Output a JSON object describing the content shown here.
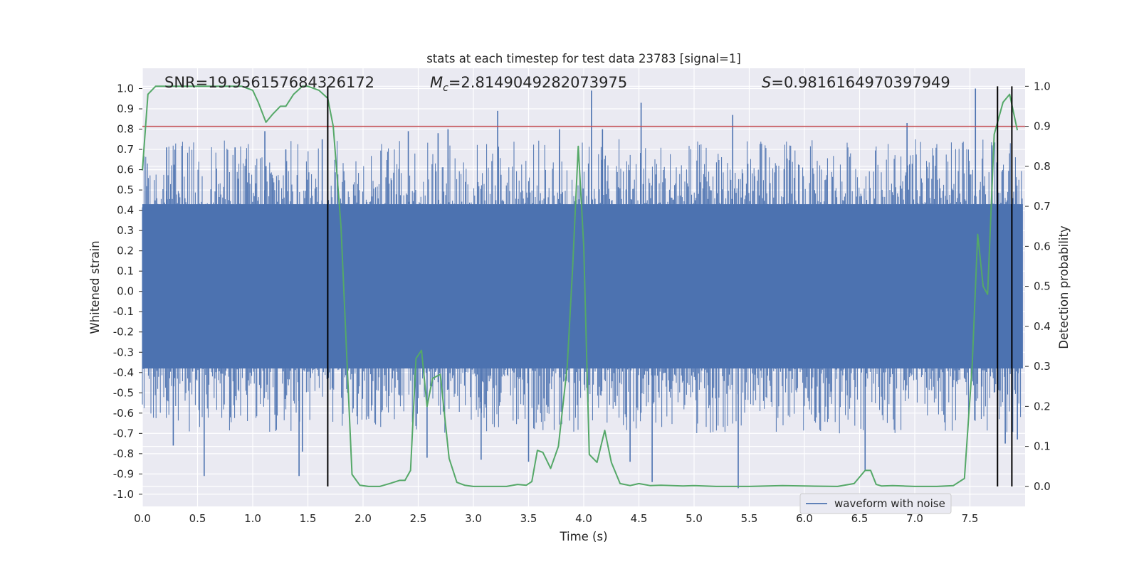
{
  "chart_data": {
    "type": "line",
    "title": "stats at each timestep for test data 23783 [signal=1]",
    "xlabel": "Time (s)",
    "ylabel": "Whitened strain",
    "y2label": "Detection probability",
    "xlim": [
      0.0,
      8.0
    ],
    "ylim": [
      -1.06,
      1.1
    ],
    "y2lim": [
      -0.05,
      1.045
    ],
    "xticks": [
      "0.0",
      "0.5",
      "1.0",
      "1.5",
      "2.0",
      "2.5",
      "3.0",
      "3.5",
      "4.0",
      "4.5",
      "5.0",
      "5.5",
      "6.0",
      "6.5",
      "7.0",
      "7.5"
    ],
    "yticks": [
      "-1.0",
      "-0.9",
      "-0.8",
      "-0.7",
      "-0.6",
      "-0.5",
      "-0.4",
      "-0.3",
      "-0.2",
      "-0.1",
      "0.0",
      "0.1",
      "0.2",
      "0.3",
      "0.4",
      "0.5",
      "0.6",
      "0.7",
      "0.8",
      "0.9",
      "1.0"
    ],
    "y2ticks": [
      "0.0",
      "0.1",
      "0.2",
      "0.3",
      "0.4",
      "0.5",
      "0.6",
      "0.7",
      "0.8",
      "0.9",
      "1.0"
    ],
    "grid": true,
    "legend_placement": "lower-right",
    "annotations": {
      "snr": "SNR=19.956157684326172",
      "mc_symbol": "M",
      "mc_sub": "c",
      "mc_value": "=2.8149049282073975",
      "s_symbol": "S",
      "s_value": "=0.9816164970397949"
    },
    "threshold": {
      "value": 0.9,
      "axis": "y2",
      "color": "#c44e52"
    },
    "vlines": [
      1.68,
      7.75,
      7.88
    ],
    "series": [
      {
        "name": "waveform with noise",
        "style": "noise-band",
        "color": "#4c72b0",
        "core_range": [
          -0.38,
          0.43
        ],
        "max_abs": 1.0,
        "spikes": [
          {
            "x": 0.56,
            "y": -0.91
          },
          {
            "x": 1.42,
            "y": -0.91
          },
          {
            "x": 1.45,
            "y": -0.79
          },
          {
            "x": 1.63,
            "y": 0.75
          },
          {
            "x": 1.11,
            "y": 0.79
          },
          {
            "x": 2.41,
            "y": 0.79
          },
          {
            "x": 2.58,
            "y": -0.82
          },
          {
            "x": 2.77,
            "y": 0.8
          },
          {
            "x": 3.07,
            "y": -0.83
          },
          {
            "x": 3.22,
            "y": 0.89
          },
          {
            "x": 3.78,
            "y": 0.8
          },
          {
            "x": 4.07,
            "y": 0.99
          },
          {
            "x": 4.17,
            "y": 0.8
          },
          {
            "x": 4.42,
            "y": -0.84
          },
          {
            "x": 4.52,
            "y": 0.93
          },
          {
            "x": 4.62,
            "y": -0.94
          },
          {
            "x": 5.35,
            "y": 0.87
          },
          {
            "x": 5.4,
            "y": -0.97
          },
          {
            "x": 6.55,
            "y": -0.88
          },
          {
            "x": 6.93,
            "y": 0.83
          },
          {
            "x": 7.55,
            "y": 1.0
          },
          {
            "x": 7.7,
            "y": 0.72
          },
          {
            "x": 7.82,
            "y": -0.75
          },
          {
            "x": 7.93,
            "y": -0.73
          },
          {
            "x": 0.22,
            "y": 0.71
          },
          {
            "x": 0.28,
            "y": -0.76
          },
          {
            "x": 0.84,
            "y": 0.71
          },
          {
            "x": 1.3,
            "y": 0.7
          },
          {
            "x": 2.68,
            "y": 0.78
          },
          {
            "x": 3.5,
            "y": -0.84
          }
        ]
      },
      {
        "name": "",
        "axis": "y2",
        "color": "#55a868",
        "x": [
          0.0,
          0.05,
          0.12,
          0.3,
          0.5,
          0.7,
          0.9,
          1.0,
          1.05,
          1.12,
          1.18,
          1.25,
          1.3,
          1.37,
          1.45,
          1.5,
          1.6,
          1.68,
          1.73,
          1.8,
          1.9,
          1.97,
          2.05,
          2.15,
          2.25,
          2.33,
          2.38,
          2.43,
          2.48,
          2.53,
          2.58,
          2.63,
          2.7,
          2.78,
          2.85,
          2.92,
          3.0,
          3.15,
          3.3,
          3.4,
          3.48,
          3.53,
          3.58,
          3.63,
          3.7,
          3.77,
          3.85,
          3.9,
          3.95,
          4.0,
          4.05,
          4.12,
          4.19,
          4.25,
          4.33,
          4.42,
          4.5,
          4.6,
          4.7,
          4.8,
          4.9,
          5.0,
          5.2,
          5.5,
          5.8,
          6.0,
          6.3,
          6.45,
          6.55,
          6.6,
          6.65,
          6.7,
          6.8,
          6.9,
          7.0,
          7.2,
          7.35,
          7.45,
          7.52,
          7.57,
          7.62,
          7.66,
          7.72,
          7.8,
          7.86,
          7.93
        ],
        "y": [
          0.79,
          0.98,
          1.0,
          1.0,
          1.0,
          1.0,
          1.0,
          0.99,
          0.96,
          0.91,
          0.93,
          0.95,
          0.95,
          0.98,
          1.0,
          1.0,
          0.99,
          0.97,
          0.9,
          0.65,
          0.03,
          0.003,
          0.0,
          0.0,
          0.008,
          0.015,
          0.015,
          0.04,
          0.32,
          0.34,
          0.2,
          0.27,
          0.28,
          0.07,
          0.01,
          0.003,
          0.0,
          0.0,
          0.0,
          0.005,
          0.003,
          0.012,
          0.09,
          0.085,
          0.045,
          0.1,
          0.3,
          0.55,
          0.85,
          0.6,
          0.08,
          0.06,
          0.14,
          0.06,
          0.007,
          0.002,
          0.007,
          0.002,
          0.003,
          0.002,
          0.001,
          0.002,
          0.0,
          0.0,
          0.002,
          0.001,
          0.0,
          0.007,
          0.04,
          0.04,
          0.005,
          0.001,
          0.002,
          0.001,
          0.0,
          0.0,
          0.002,
          0.02,
          0.3,
          0.63,
          0.5,
          0.48,
          0.88,
          0.96,
          0.98,
          0.89
        ]
      }
    ]
  }
}
